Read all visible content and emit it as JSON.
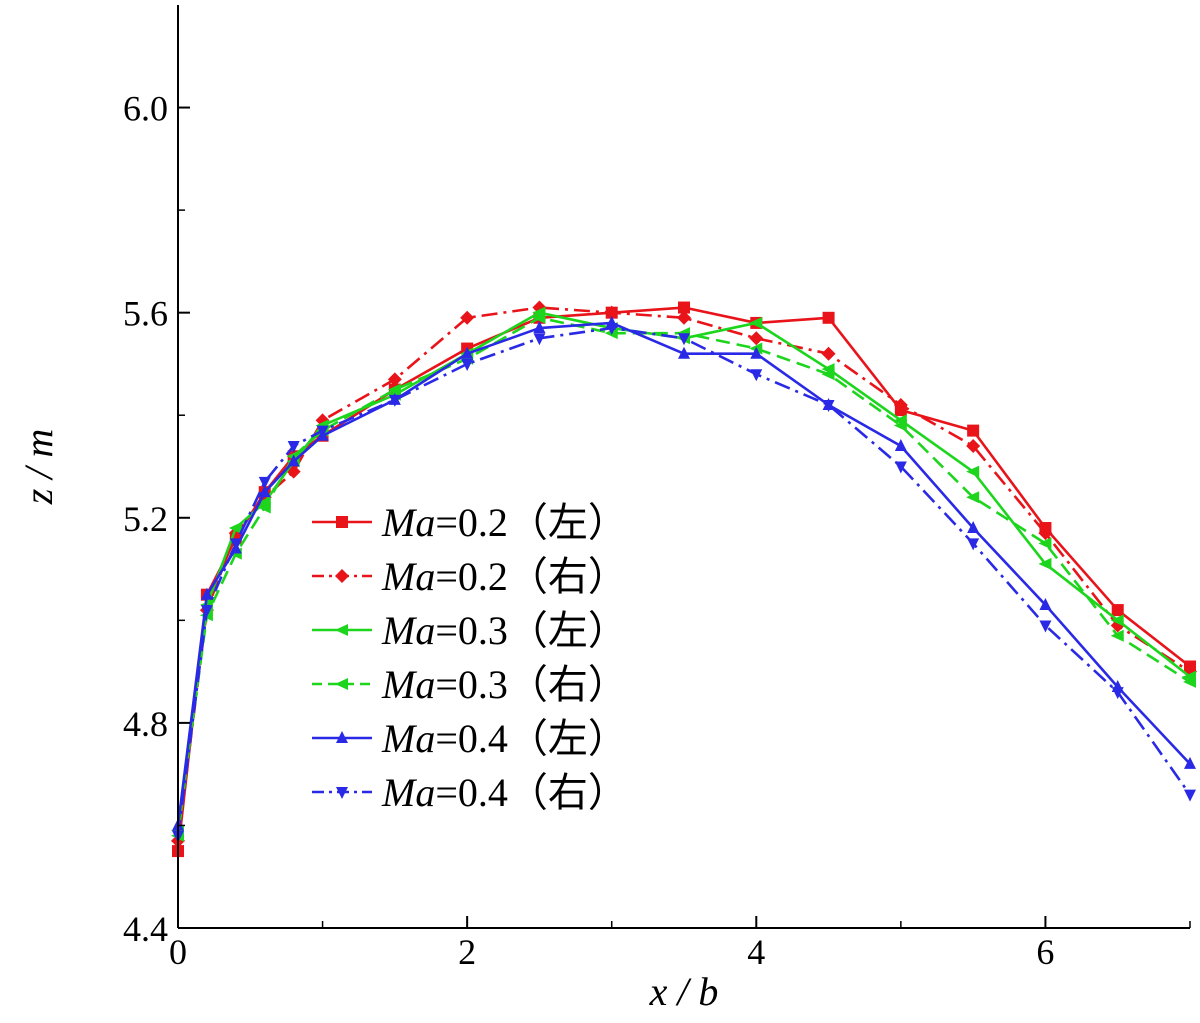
{
  "chart_data": {
    "type": "line",
    "title": "",
    "xlabel": "x / b",
    "ylabel": "z / m",
    "xlim": [
      0,
      7
    ],
    "ylim": [
      4.4,
      6.2
    ],
    "xticks": [
      0,
      2,
      4,
      6
    ],
    "yticks": [
      4.4,
      4.8,
      5.2,
      5.6,
      6.0
    ],
    "xtick_labels": [
      "0",
      "2",
      "4",
      "6"
    ],
    "ytick_labels": [
      "4.4",
      "4.8",
      "5.2",
      "5.6",
      "6.0"
    ],
    "grid": false,
    "legend_position": "center-left",
    "series": [
      {
        "name": "Ma=0.2（左）",
        "label_prefix": "Ma",
        "label_suffix": "=0.2（左）",
        "color": "#e8141a",
        "line_style": "solid",
        "marker": "square",
        "x": [
          0,
          0.2,
          0.4,
          0.6,
          0.8,
          1.0,
          1.5,
          2.0,
          2.5,
          3.0,
          3.5,
          4.0,
          4.5,
          5.0,
          5.5,
          6.0,
          6.5,
          7.0
        ],
        "y": [
          4.55,
          5.05,
          5.16,
          5.25,
          5.32,
          5.36,
          5.45,
          5.53,
          5.59,
          5.6,
          5.61,
          5.58,
          5.59,
          5.41,
          5.37,
          5.18,
          5.02,
          4.91
        ]
      },
      {
        "name": "Ma=0.2（右）",
        "label_prefix": "Ma",
        "label_suffix": "=0.2（右）",
        "color": "#e8141a",
        "line_style": "dashdot",
        "marker": "diamond",
        "x": [
          0,
          0.2,
          0.4,
          0.6,
          0.8,
          1.0,
          1.5,
          2.0,
          2.5,
          3.0,
          3.5,
          4.0,
          4.5,
          5.0,
          5.5,
          6.0,
          6.5,
          7.0
        ],
        "y": [
          4.57,
          5.02,
          5.17,
          5.24,
          5.29,
          5.39,
          5.47,
          5.59,
          5.61,
          5.6,
          5.59,
          5.55,
          5.52,
          5.42,
          5.34,
          5.17,
          4.99,
          4.9
        ]
      },
      {
        "name": "Ma=0.3（左）",
        "label_prefix": "Ma",
        "label_suffix": "=0.3（左）",
        "color": "#1dd51d",
        "line_style": "solid",
        "marker": "triangle-left",
        "x": [
          0,
          0.2,
          0.4,
          0.6,
          0.8,
          1.0,
          1.5,
          2.0,
          2.5,
          3.0,
          3.5,
          4.0,
          4.5,
          5.0,
          5.5,
          6.0,
          6.5,
          7.0
        ],
        "y": [
          4.58,
          5.03,
          5.18,
          5.23,
          5.31,
          5.38,
          5.44,
          5.52,
          5.6,
          5.57,
          5.55,
          5.58,
          5.49,
          5.39,
          5.29,
          5.11,
          5.0,
          4.89
        ]
      },
      {
        "name": "Ma=0.3（右）",
        "label_prefix": "Ma",
        "label_suffix": "=0.3（右）",
        "color": "#1dd51d",
        "line_style": "dashed",
        "marker": "triangle-left",
        "x": [
          0,
          0.2,
          0.4,
          0.6,
          0.8,
          1.0,
          1.5,
          2.0,
          2.5,
          3.0,
          3.5,
          4.0,
          4.5,
          5.0,
          5.5,
          6.0,
          6.5,
          7.0
        ],
        "y": [
          4.59,
          5.01,
          5.13,
          5.22,
          5.32,
          5.37,
          5.45,
          5.51,
          5.59,
          5.56,
          5.56,
          5.53,
          5.48,
          5.38,
          5.24,
          5.15,
          4.97,
          4.88
        ]
      },
      {
        "name": "Ma=0.4（左）",
        "label_prefix": "Ma",
        "label_suffix": "=0.4（左）",
        "color": "#2a2ae6",
        "line_style": "solid",
        "marker": "triangle-up",
        "x": [
          0,
          0.2,
          0.4,
          0.6,
          0.8,
          1.0,
          1.5,
          2.0,
          2.5,
          3.0,
          3.5,
          4.0,
          4.5,
          5.0,
          5.5,
          6.0,
          6.5,
          7.0
        ],
        "y": [
          4.6,
          5.05,
          5.14,
          5.25,
          5.31,
          5.36,
          5.43,
          5.52,
          5.57,
          5.58,
          5.52,
          5.52,
          5.42,
          5.34,
          5.18,
          5.03,
          4.87,
          4.72
        ]
      },
      {
        "name": "Ma=0.4（右）",
        "label_prefix": "Ma",
        "label_suffix": "=0.4（右）",
        "color": "#2a2ae6",
        "line_style": "dashdot",
        "marker": "triangle-down",
        "x": [
          0,
          0.2,
          0.4,
          0.6,
          0.8,
          1.0,
          1.5,
          2.0,
          2.5,
          3.0,
          3.5,
          4.0,
          4.5,
          5.0,
          5.5,
          6.0,
          6.5,
          7.0
        ],
        "y": [
          4.58,
          5.02,
          5.15,
          5.27,
          5.34,
          5.37,
          5.43,
          5.5,
          5.55,
          5.57,
          5.55,
          5.48,
          5.42,
          5.3,
          5.15,
          4.99,
          4.86,
          4.66
        ]
      }
    ]
  }
}
